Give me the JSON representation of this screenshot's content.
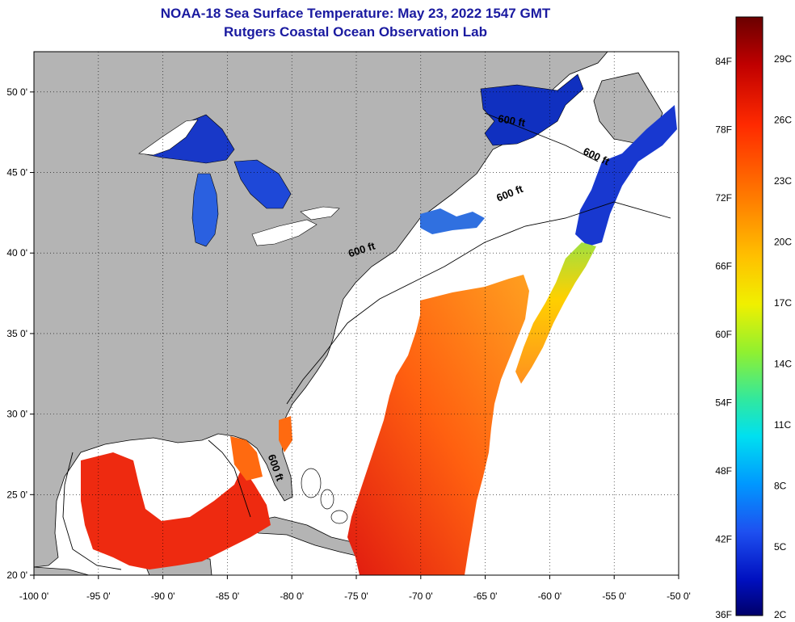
{
  "title": "NOAA-18 Sea Surface Temperature:  May 23, 2022 1547 GMT",
  "subtitle": "Rutgers Coastal Ocean Observation Lab",
  "axes": {
    "lon_ticks": [
      {
        "value": -100,
        "label": "-100 0'"
      },
      {
        "value": -95,
        "label": "-95 0'"
      },
      {
        "value": -90,
        "label": "-90 0'"
      },
      {
        "value": -85,
        "label": "-85 0'"
      },
      {
        "value": -80,
        "label": "-80 0'"
      },
      {
        "value": -75,
        "label": "-75 0'"
      },
      {
        "value": -70,
        "label": "-70 0'"
      },
      {
        "value": -65,
        "label": "-65 0'"
      },
      {
        "value": -60,
        "label": "-60 0'"
      },
      {
        "value": -55,
        "label": "-55 0'"
      },
      {
        "value": -50,
        "label": "-50 0'"
      }
    ],
    "lat_ticks": [
      {
        "value": 20,
        "label": "20 0'"
      },
      {
        "value": 25,
        "label": "25 0'"
      },
      {
        "value": 30,
        "label": "30 0'"
      },
      {
        "value": 35,
        "label": "35 0'"
      },
      {
        "value": 40,
        "label": "40 0'"
      },
      {
        "value": 45,
        "label": "45 0'"
      },
      {
        "value": 50,
        "label": "50 0'"
      }
    ],
    "lon_range": [
      -100,
      -50
    ],
    "lat_range": [
      20,
      52.5
    ],
    "grid": "dotted"
  },
  "contour_labels": [
    {
      "text": "600 ft",
      "lon": -81.5,
      "lat": 26.6,
      "angle": 70
    },
    {
      "text": "600 ft",
      "lon": -74.5,
      "lat": 40.0,
      "angle": -18
    },
    {
      "text": "600 ft",
      "lon": -63.0,
      "lat": 43.5,
      "angle": -22
    },
    {
      "text": "600 ft",
      "lon": -63.0,
      "lat": 48.0,
      "angle": 10
    },
    {
      "text": "600 ft",
      "lon": -56.5,
      "lat": 45.8,
      "angle": 25
    }
  ],
  "colorbar": {
    "fahrenheit_labels": [
      "84F",
      "78F",
      "72F",
      "66F",
      "60F",
      "54F",
      "48F",
      "42F",
      "36F"
    ],
    "celsius_labels": [
      "29C",
      "26C",
      "23C",
      "20C",
      "17C",
      "14C",
      "11C",
      "8C",
      "5C",
      "2C"
    ],
    "colors": [
      "#6a0000",
      "#c00000",
      "#ff2a00",
      "#ff7a00",
      "#ffb000",
      "#ffe000",
      "#b8f020",
      "#40e870",
      "#00e0e0",
      "#00a0ff",
      "#1e50f0",
      "#0010c0",
      "#00006a"
    ]
  },
  "colors": {
    "land": "#b4b4b4",
    "ocean_nodata": "#ffffff",
    "title": "#1a1aa0",
    "warm": "#f03010",
    "cold": "#1838d0"
  }
}
